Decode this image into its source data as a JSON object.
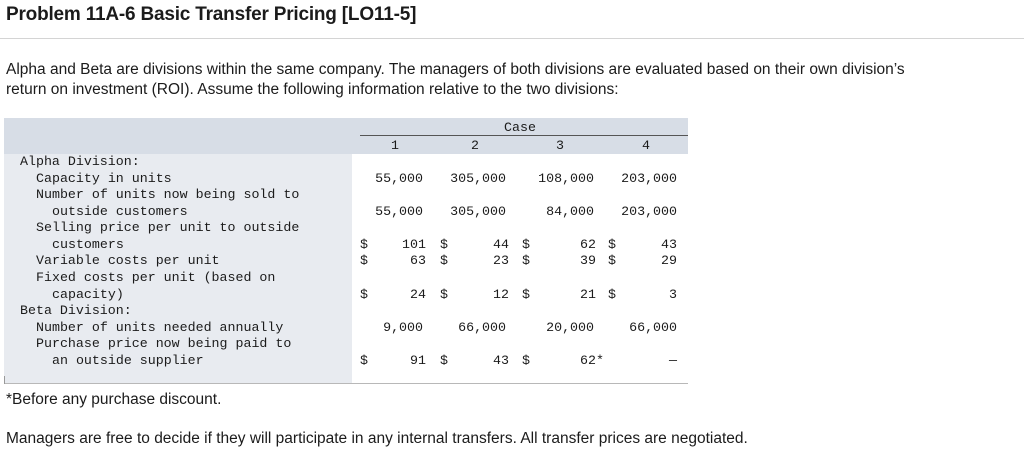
{
  "title": "Problem 11A-6 Basic Transfer Pricing [LO11-5]",
  "intro_lines": [
    "Alpha and Beta are divisions within the same company. The managers of both divisions are evaluated based on their own division’s",
    "return on investment (ROI). Assume the following information relative to the two divisions:"
  ],
  "table": {
    "case_label": "Case",
    "case_numbers": [
      "1",
      "2",
      "3",
      "4"
    ],
    "alpha_heading": "Alpha Division:",
    "alpha": {
      "capacity_label": "Capacity in units",
      "capacity": [
        "55,000",
        "305,000",
        "108,000",
        "203,000"
      ],
      "units_sold_label_1": "Number of units now being sold to",
      "units_sold_label_2": "outside customers",
      "units_sold": [
        "55,000",
        "305,000",
        "84,000",
        "203,000"
      ],
      "price_label_1": "Selling price per unit to outside",
      "price_label_2": "customers",
      "price": [
        "101",
        "44",
        "62",
        "43"
      ],
      "var_cost_label": "Variable costs per unit",
      "var_cost": [
        "63",
        "23",
        "39",
        "29"
      ],
      "fixed_label_1": "Fixed costs per unit (based on",
      "fixed_label_2": "capacity)",
      "fixed": [
        "24",
        "12",
        "21",
        "3"
      ]
    },
    "beta_heading": "Beta Division:",
    "beta": {
      "units_needed_label": "Number of units needed annually",
      "units_needed": [
        "9,000",
        "66,000",
        "20,000",
        "66,000"
      ],
      "purchase_label_1": "Purchase price now being paid to",
      "purchase_label_2": "an outside supplier",
      "purchase": [
        "91",
        "43",
        "62*",
        "—"
      ]
    },
    "dollar_sign": "$"
  },
  "footnote": "*Before any purchase discount.",
  "closing": "Managers are free to decide if they will participate in any internal transfers. All transfer prices are negotiated."
}
